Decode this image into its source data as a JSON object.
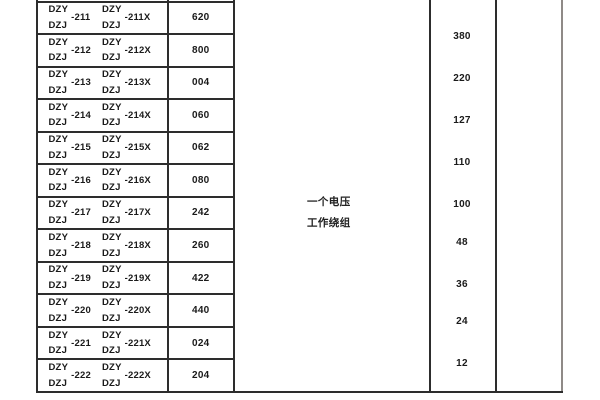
{
  "table": {
    "rows": [
      {
        "model": {
          "prefix_top": "DZY",
          "prefix_bottom": "DZJ",
          "suffix": "-211"
        },
        "model_x": {
          "prefix_top": "DZY",
          "prefix_bottom": "DZJ",
          "suffix": "-211X"
        },
        "code": "620"
      },
      {
        "model": {
          "prefix_top": "DZY",
          "prefix_bottom": "DZJ",
          "suffix": "-212"
        },
        "model_x": {
          "prefix_top": "DZY",
          "prefix_bottom": "DZJ",
          "suffix": "-212X"
        },
        "code": "800"
      },
      {
        "model": {
          "prefix_top": "DZY",
          "prefix_bottom": "DZJ",
          "suffix": "-213"
        },
        "model_x": {
          "prefix_top": "DZY",
          "prefix_bottom": "DZJ",
          "suffix": "-213X"
        },
        "code": "004"
      },
      {
        "model": {
          "prefix_top": "DZY",
          "prefix_bottom": "DZJ",
          "suffix": "-214"
        },
        "model_x": {
          "prefix_top": "DZY",
          "prefix_bottom": "DZJ",
          "suffix": "-214X"
        },
        "code": "060"
      },
      {
        "model": {
          "prefix_top": "DZY",
          "prefix_bottom": "DZJ",
          "suffix": "-215"
        },
        "model_x": {
          "prefix_top": "DZY",
          "prefix_bottom": "DZJ",
          "suffix": "-215X"
        },
        "code": "062"
      },
      {
        "model": {
          "prefix_top": "DZY",
          "prefix_bottom": "DZJ",
          "suffix": "-216"
        },
        "model_x": {
          "prefix_top": "DZY",
          "prefix_bottom": "DZJ",
          "suffix": "-216X"
        },
        "code": "080"
      },
      {
        "model": {
          "prefix_top": "DZY",
          "prefix_bottom": "DZJ",
          "suffix": "-217"
        },
        "model_x": {
          "prefix_top": "DZY",
          "prefix_bottom": "DZJ",
          "suffix": "-217X"
        },
        "code": "242"
      },
      {
        "model": {
          "prefix_top": "DZY",
          "prefix_bottom": "DZJ",
          "suffix": "-218"
        },
        "model_x": {
          "prefix_top": "DZY",
          "prefix_bottom": "DZJ",
          "suffix": "-218X"
        },
        "code": "260"
      },
      {
        "model": {
          "prefix_top": "DZY",
          "prefix_bottom": "DZJ",
          "suffix": "-219"
        },
        "model_x": {
          "prefix_top": "DZY",
          "prefix_bottom": "DZJ",
          "suffix": "-219X"
        },
        "code": "422"
      },
      {
        "model": {
          "prefix_top": "DZY",
          "prefix_bottom": "DZJ",
          "suffix": "-220"
        },
        "model_x": {
          "prefix_top": "DZY",
          "prefix_bottom": "DZJ",
          "suffix": "-220X"
        },
        "code": "440"
      },
      {
        "model": {
          "prefix_top": "DZY",
          "prefix_bottom": "DZJ",
          "suffix": "-221"
        },
        "model_x": {
          "prefix_top": "DZY",
          "prefix_bottom": "DZJ",
          "suffix": "-221X"
        },
        "code": "024"
      },
      {
        "model": {
          "prefix_top": "DZY",
          "prefix_bottom": "DZJ",
          "suffix": "-222"
        },
        "model_x": {
          "prefix_top": "DZY",
          "prefix_bottom": "DZJ",
          "suffix": "-222X"
        },
        "code": "204"
      }
    ],
    "winding_label": {
      "line1": "一个电压",
      "line2": "工作绕组"
    },
    "voltages": [
      "380",
      "220",
      "127",
      "110",
      "100",
      "48",
      "36",
      "24",
      "12"
    ],
    "colors": {
      "border": "#2d2d2d",
      "border_light": "#8f8a87",
      "text": "#1a1a1a"
    }
  }
}
